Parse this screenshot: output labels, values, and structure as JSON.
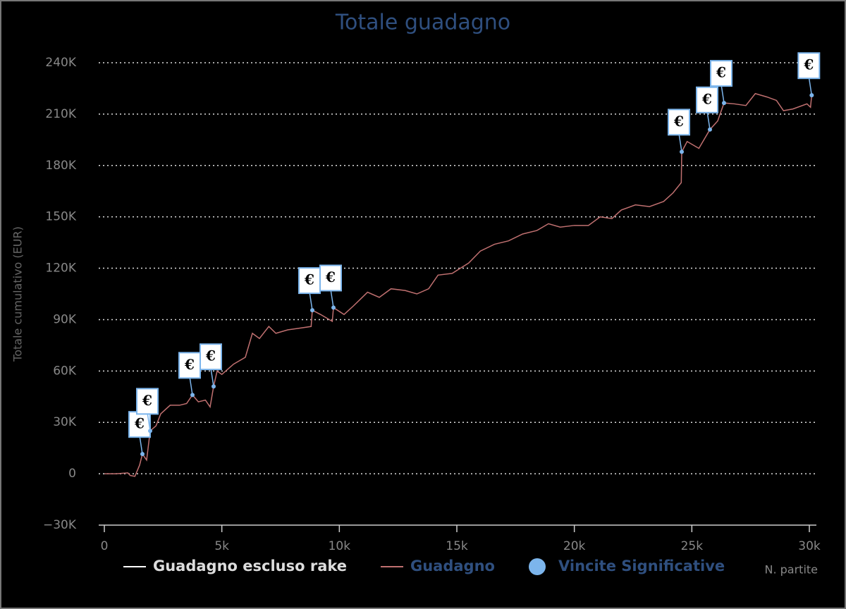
{
  "chart_data": {
    "type": "line",
    "title": "Totale guadagno",
    "y_label": "Totale cumulativo (EUR)",
    "x_label": "N. partite",
    "flag_label": "€",
    "xlim": [
      0,
      30300
    ],
    "ylim": [
      -30000,
      240000
    ],
    "xticks": [
      0,
      {
        "value": 5000,
        "label": "5k"
      },
      {
        "value": 10000,
        "label": "10k"
      },
      {
        "value": 15000,
        "label": "15k"
      },
      {
        "value": 20000,
        "label": "20k"
      },
      {
        "value": 25000,
        "label": "25k"
      },
      {
        "value": 30000,
        "label": "30k"
      }
    ],
    "yticks": [
      {
        "value": -30000,
        "label": "−30K"
      },
      0,
      {
        "value": 30000,
        "label": "30K"
      },
      {
        "value": 60000,
        "label": "60K"
      },
      {
        "value": 90000,
        "label": "90K"
      },
      {
        "value": 120000,
        "label": "120K"
      },
      {
        "value": 150000,
        "label": "150K"
      },
      {
        "value": 180000,
        "label": "180K"
      },
      {
        "value": 210000,
        "label": "210K"
      },
      {
        "value": 240000,
        "label": "240K"
      }
    ],
    "grid": true,
    "x": [
      0,
      500,
      1000,
      1100,
      1300,
      1500,
      1620,
      1800,
      1950,
      2200,
      2400,
      2800,
      3200,
      3500,
      3750,
      4000,
      4300,
      4500,
      4650,
      4800,
      5000,
      5500,
      6000,
      6300,
      6600,
      7000,
      7300,
      7800,
      8300,
      8800,
      8850,
      9200,
      9700,
      9750,
      10200,
      10600,
      11200,
      11700,
      12200,
      12800,
      13300,
      13800,
      14200,
      14800,
      15500,
      16000,
      16600,
      17200,
      17800,
      18400,
      18900,
      19400,
      20000,
      20600,
      21100,
      21600,
      22000,
      22600,
      23200,
      23800,
      24200,
      24550,
      24570,
      24800,
      25300,
      25770,
      26100,
      26370,
      26800,
      27300,
      27700,
      28200,
      28600,
      28900,
      29300,
      29900,
      30050,
      30100
    ],
    "series": [
      {
        "name": "Guadagno escluso rake",
        "color": "#ffffff",
        "visible": false
      },
      {
        "name": "Guadagno",
        "color": "#c07070",
        "values": [
          0,
          0,
          500,
          -1000,
          -1500,
          5000,
          11500,
          8000,
          25000,
          28000,
          35000,
          40000,
          40000,
          41000,
          46000,
          42000,
          43000,
          39000,
          51000,
          60000,
          58000,
          64000,
          68000,
          82000,
          79000,
          86000,
          82000,
          84000,
          85000,
          86000,
          95500,
          93000,
          89000,
          97000,
          93000,
          98000,
          106000,
          103000,
          108000,
          107000,
          105000,
          108000,
          116000,
          117000,
          123000,
          130000,
          134000,
          136000,
          140000,
          142000,
          146000,
          144000,
          145000,
          145000,
          150000,
          149000,
          154000,
          157000,
          156000,
          159000,
          164000,
          170000,
          188000,
          194000,
          190000,
          201000,
          206000,
          216500,
          216000,
          215000,
          222000,
          220000,
          218000,
          212000,
          213000,
          216000,
          214000,
          221000
        ]
      },
      {
        "name": "Vincite Significative",
        "type": "scatter",
        "color": "#7cb5ec",
        "x": [
          1620,
          1950,
          3750,
          4650,
          8850,
          9750,
          24570,
          25770,
          26370,
          30100
        ],
        "values": [
          11500,
          25000,
          46000,
          51000,
          95500,
          97000,
          188000,
          201000,
          216500,
          221000
        ]
      }
    ]
  }
}
